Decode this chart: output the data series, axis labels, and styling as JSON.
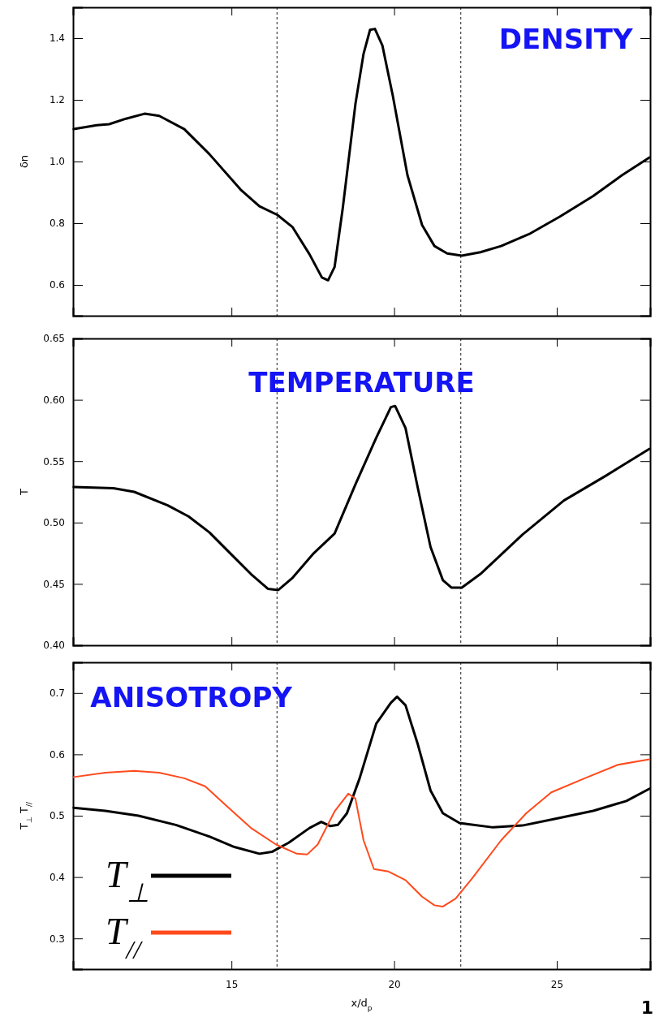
{
  "chart_data": [
    {
      "type": "line",
      "title": "DENSITY",
      "ylabel": "δn",
      "xlim": [
        10.13,
        27.87
      ],
      "xticks": [
        15,
        20,
        25
      ],
      "ylim": [
        0.5,
        1.5
      ],
      "yticks": [
        0.6,
        0.8,
        {
          "value": 1,
          "label": "1.0"
        },
        1.2,
        1.4
      ],
      "tick_labels": "y",
      "legend": false,
      "grid": false,
      "x": [
        10.15,
        10.86,
        11.24,
        11.76,
        12.33,
        12.78,
        13.55,
        14.32,
        15.28,
        15.86,
        16.41,
        16.88,
        17.4,
        17.78,
        17.97,
        18.17,
        18.42,
        18.81,
        19.06,
        19.26,
        19.41,
        19.64,
        19.96,
        20.41,
        20.86,
        21.24,
        21.63,
        22.08,
        22.65,
        23.29,
        24.19,
        25.09,
        26.12,
        27.01,
        27.85
      ],
      "series": [
        {
          "color": "#000000",
          "values": [
            1.105,
            1.118,
            1.121,
            1.139,
            1.155,
            1.148,
            1.105,
            1.024,
            0.909,
            0.855,
            0.827,
            0.787,
            0.699,
            0.624,
            0.615,
            0.658,
            0.848,
            1.186,
            1.349,
            1.427,
            1.43,
            1.376,
            1.213,
            0.956,
            0.794,
            0.726,
            0.702,
            0.695,
            0.706,
            0.726,
            0.767,
            0.821,
            0.888,
            0.956,
            1.013
          ]
        }
      ],
      "ref_lines": [
        {
          "axis": "x",
          "value": 16.4,
          "line_style": "dashed",
          "color": "#000000"
        },
        {
          "axis": "x",
          "value": 22.05,
          "line_style": "dashed",
          "color": "#000000"
        }
      ]
    },
    {
      "type": "line",
      "title": "TEMPERATURE",
      "ylabel": "T",
      "xlim": [
        10.13,
        27.87
      ],
      "xticks": [
        15,
        20,
        25
      ],
      "ylim": [
        0.4,
        0.65
      ],
      "yticks": [
        {
          "value": 0.4,
          "label": "0.40"
        },
        0.45,
        {
          "value": 0.5,
          "label": "0.50"
        },
        0.55,
        {
          "value": 0.6,
          "label": "0.60"
        },
        0.65
      ],
      "tick_labels": "y",
      "legend": false,
      "grid": false,
      "x": [
        10.15,
        11.37,
        12.01,
        13.04,
        13.68,
        14.32,
        14.96,
        15.6,
        16.12,
        16.44,
        16.88,
        17.53,
        18.17,
        18.81,
        19.45,
        19.9,
        20.03,
        20.35,
        20.73,
        21.12,
        21.5,
        21.76,
        22.08,
        22.65,
        23.94,
        25.22,
        26.5,
        27.85
      ],
      "series": [
        {
          "color": "#000000",
          "values": [
            0.529,
            0.528,
            0.525,
            0.514,
            0.505,
            0.492,
            0.475,
            0.458,
            0.446,
            0.445,
            0.455,
            0.475,
            0.491,
            0.531,
            0.569,
            0.594,
            0.595,
            0.577,
            0.528,
            0.48,
            0.453,
            0.447,
            0.447,
            0.458,
            0.49,
            0.518,
            0.538,
            0.56
          ]
        }
      ],
      "ref_lines": [
        {
          "axis": "x",
          "value": 16.4,
          "line_style": "dashed",
          "color": "#000000"
        },
        {
          "axis": "x",
          "value": 22.05,
          "line_style": "dashed",
          "color": "#000000"
        }
      ]
    },
    {
      "type": "line",
      "title": "ANISOTROPY",
      "ylabel": "T$_{⊥}$ T$_{//}$",
      "xlabel": "x/d$_{p}$",
      "xlim": [
        10.13,
        27.87
      ],
      "xticks": [
        15,
        20,
        25
      ],
      "ylim": [
        0.25,
        0.75
      ],
      "yticks": [
        0.3,
        0.4,
        0.5,
        0.6,
        0.7
      ],
      "legend": "bottom left",
      "grid": false,
      "series": [
        {
          "name": "T$_{⊥}$",
          "color": "#000000",
          "x": [
            10.15,
            11.12,
            12.14,
            13.29,
            14.32,
            15.09,
            15.86,
            16.24,
            16.76,
            17.4,
            17.76,
            18.04,
            18.27,
            18.55,
            18.94,
            19.45,
            19.9,
            20.09,
            20.35,
            20.73,
            21.12,
            21.5,
            22.01,
            23.04,
            23.94,
            24.96,
            26.12,
            27.14,
            27.85
          ],
          "values": [
            0.513,
            0.508,
            0.5,
            0.485,
            0.466,
            0.449,
            0.438,
            0.441,
            0.456,
            0.48,
            0.49,
            0.483,
            0.485,
            0.504,
            0.561,
            0.65,
            0.684,
            0.694,
            0.68,
            0.616,
            0.541,
            0.504,
            0.488,
            0.481,
            0.484,
            0.495,
            0.508,
            0.524,
            0.544
          ]
        },
        {
          "name": "T$_{//}$",
          "color": "#ff4a1c",
          "x": [
            10.15,
            11.12,
            12.01,
            12.78,
            13.55,
            14.19,
            14.83,
            15.6,
            16.37,
            17.01,
            17.33,
            17.65,
            18.17,
            18.59,
            18.81,
            19.06,
            19.38,
            19.83,
            20.35,
            20.86,
            21.24,
            21.5,
            21.89,
            22.4,
            23.29,
            24.06,
            24.83,
            25.86,
            26.88,
            27.85
          ],
          "values": [
            0.563,
            0.57,
            0.573,
            0.57,
            0.561,
            0.548,
            0.517,
            0.48,
            0.453,
            0.438,
            0.437,
            0.453,
            0.507,
            0.536,
            0.528,
            0.46,
            0.413,
            0.409,
            0.395,
            0.368,
            0.354,
            0.352,
            0.365,
            0.398,
            0.46,
            0.504,
            0.538,
            0.561,
            0.583,
            0.592
          ]
        }
      ],
      "ref_lines": [
        {
          "axis": "x",
          "value": 16.4,
          "line_style": "dashed",
          "color": "#000000"
        },
        {
          "axis": "x",
          "value": 22.05,
          "line_style": "dashed",
          "color": "#000000"
        }
      ],
      "annotations": [
        "1"
      ]
    }
  ]
}
